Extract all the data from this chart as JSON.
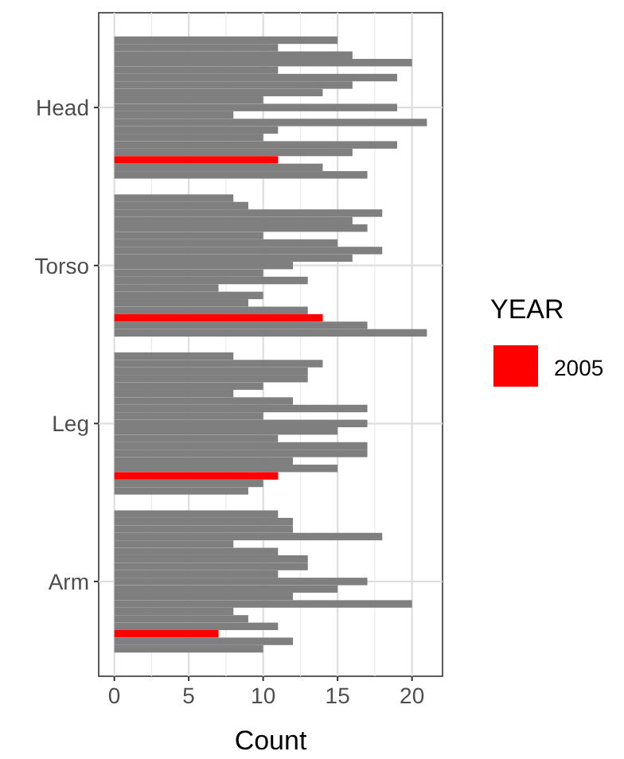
{
  "chart_data": {
    "type": "bar",
    "orientation": "horizontal",
    "categories": [
      "Head",
      "Torso",
      "Leg",
      "Arm"
    ],
    "xlabel": "Count",
    "legend_title": "YEAR",
    "legend": "right",
    "grid": true,
    "xlim": [
      -1.05,
      22.05
    ],
    "xticks": [
      0,
      5,
      10,
      15,
      20
    ],
    "series": [
      {
        "color": "#7f7f7f",
        "values": [
          15,
          8,
          8,
          11
        ]
      },
      {
        "color": "#7f7f7f",
        "values": [
          11,
          9,
          14,
          12
        ]
      },
      {
        "color": "#7f7f7f",
        "values": [
          16,
          18,
          13,
          12
        ]
      },
      {
        "color": "#7f7f7f",
        "values": [
          20,
          16,
          13,
          18
        ]
      },
      {
        "color": "#7f7f7f",
        "values": [
          11,
          17,
          10,
          8
        ]
      },
      {
        "color": "#7f7f7f",
        "values": [
          19,
          10,
          8,
          11
        ]
      },
      {
        "color": "#7f7f7f",
        "values": [
          16,
          15,
          12,
          13
        ]
      },
      {
        "color": "#7f7f7f",
        "values": [
          14,
          18,
          17,
          13
        ]
      },
      {
        "color": "#7f7f7f",
        "values": [
          10,
          16,
          10,
          11
        ]
      },
      {
        "color": "#7f7f7f",
        "values": [
          19,
          12,
          17,
          17
        ]
      },
      {
        "color": "#7f7f7f",
        "values": [
          8,
          10,
          15,
          15
        ]
      },
      {
        "color": "#7f7f7f",
        "values": [
          21,
          13,
          11,
          12
        ]
      },
      {
        "color": "#7f7f7f",
        "values": [
          11,
          7,
          17,
          20
        ]
      },
      {
        "color": "#7f7f7f",
        "values": [
          10,
          10,
          17,
          8
        ]
      },
      {
        "color": "#7f7f7f",
        "values": [
          19,
          9,
          12,
          9
        ]
      },
      {
        "color": "#7f7f7f",
        "values": [
          16,
          13,
          15,
          11
        ]
      },
      {
        "name": "2005",
        "color": "#ff0000",
        "values": [
          11,
          14,
          11,
          7
        ]
      },
      {
        "color": "#7f7f7f",
        "values": [
          14,
          17,
          10,
          12
        ]
      },
      {
        "color": "#7f7f7f",
        "values": [
          17,
          21,
          9,
          10
        ]
      }
    ]
  }
}
